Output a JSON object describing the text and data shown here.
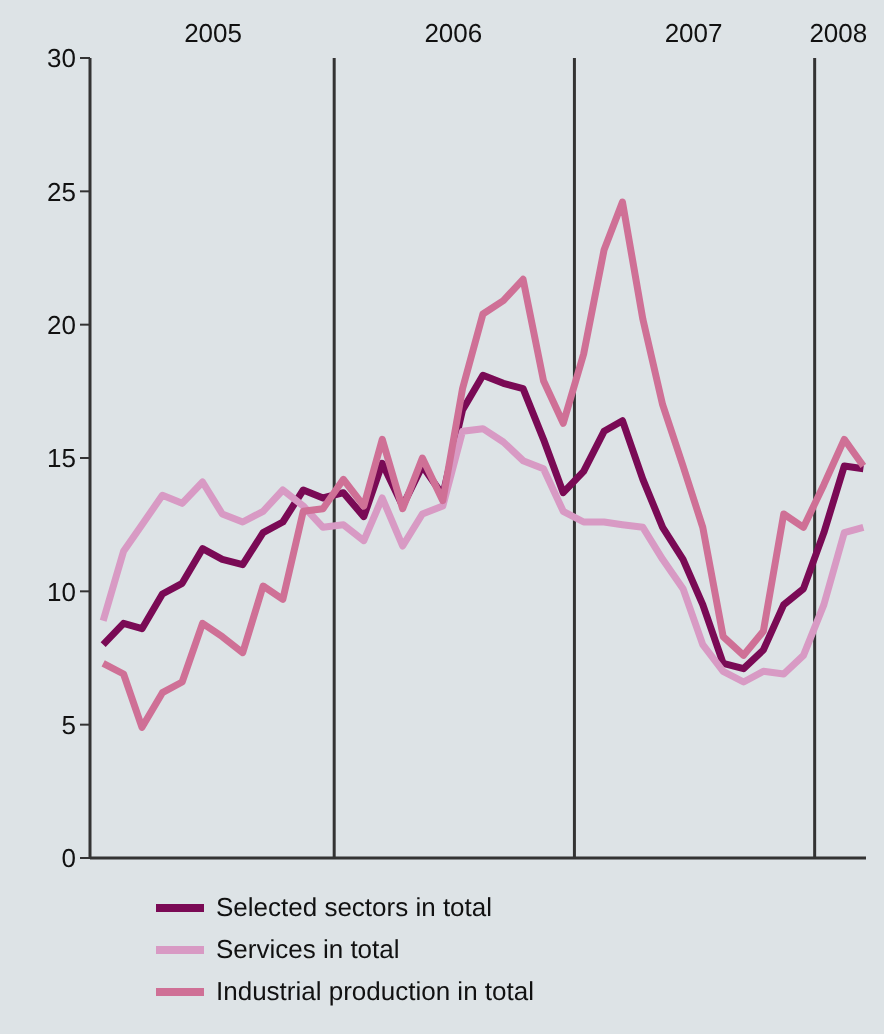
{
  "chart_data": {
    "type": "line",
    "x": [
      "2005-01-15",
      "2005-02-15",
      "2005-03-15",
      "2005-04-15",
      "2005-05-15",
      "2005-06-15",
      "2005-07-15",
      "2005-08-15",
      "2005-09-15",
      "2005-10-15",
      "2005-11-15",
      "2005-12-15",
      "2006-01-15",
      "2006-02-15",
      "2006-03-15",
      "2006-04-15",
      "2006-05-15",
      "2006-06-15",
      "2006-07-15",
      "2006-08-15",
      "2006-09-15",
      "2006-10-15",
      "2006-11-15",
      "2006-12-15",
      "2007-01-15",
      "2007-02-15",
      "2007-03-15",
      "2007-04-15",
      "2007-05-15",
      "2007-06-15",
      "2007-07-15",
      "2007-08-15",
      "2007-09-15",
      "2007-10-15",
      "2007-11-15",
      "2007-12-15",
      "2008-01-15",
      "2008-02-15",
      "2008-03-15"
    ],
    "series": [
      {
        "name": "Selected sectors in total",
        "color": "#7a0a55",
        "values": [
          8.0,
          8.8,
          8.6,
          9.9,
          10.3,
          11.6,
          11.2,
          11.0,
          12.2,
          12.6,
          13.8,
          13.5,
          13.7,
          12.8,
          14.8,
          13.2,
          14.7,
          13.6,
          16.8,
          18.1,
          17.8,
          17.6,
          15.7,
          13.7,
          14.5,
          16.0,
          16.4,
          14.2,
          12.4,
          11.2,
          9.5,
          7.3,
          7.1,
          7.8,
          9.5,
          10.1,
          12.2,
          14.7,
          14.6
        ]
      },
      {
        "name": "Services in total",
        "color": "#d89ac4",
        "values": [
          8.9,
          11.5,
          12.5,
          13.6,
          13.3,
          14.1,
          12.9,
          12.6,
          13.0,
          13.8,
          13.2,
          12.4,
          12.5,
          11.9,
          13.5,
          11.7,
          12.9,
          13.2,
          16.0,
          16.1,
          15.6,
          14.9,
          14.6,
          13.0,
          12.6,
          12.6,
          12.5,
          12.4,
          11.2,
          10.1,
          8.0,
          7.0,
          6.6,
          7.0,
          6.9,
          7.6,
          9.5,
          12.2,
          12.4
        ]
      },
      {
        "name": "Industrial production in total",
        "color": "#cf7096",
        "values": [
          7.3,
          6.9,
          4.9,
          6.2,
          6.6,
          8.8,
          8.3,
          7.7,
          10.2,
          9.7,
          13.0,
          13.1,
          14.2,
          13.2,
          15.7,
          13.1,
          15.0,
          13.4,
          17.6,
          20.4,
          20.9,
          21.7,
          17.9,
          16.3,
          18.9,
          22.8,
          24.6,
          20.2,
          17.0,
          14.7,
          12.4,
          8.3,
          7.6,
          8.5,
          12.9,
          12.4,
          14.0,
          15.7,
          14.7
        ]
      }
    ],
    "xlim": [
      "2004-12-26",
      "2008-03-19"
    ],
    "xticks": [
      {
        "value": "2005-07-01",
        "label": "2005"
      },
      {
        "value": "2006-07-01",
        "label": "2006"
      },
      {
        "value": "2007-07-01",
        "label": "2007"
      },
      {
        "value": "2008-02-06",
        "label": "2008"
      }
    ],
    "ylim": [
      0,
      30
    ],
    "yticks": [
      0,
      5,
      10,
      15,
      20,
      25,
      30
    ],
    "ref_lines": [
      {
        "axis": "x",
        "value": "2006-01-01",
        "color": "#333333"
      },
      {
        "axis": "x",
        "value": "2007-01-01",
        "color": "#333333"
      },
      {
        "axis": "x",
        "value": "2008-01-01",
        "color": "#333333"
      }
    ],
    "grid": false,
    "legend": "bottom",
    "marker": "none",
    "line_style": "solid"
  }
}
